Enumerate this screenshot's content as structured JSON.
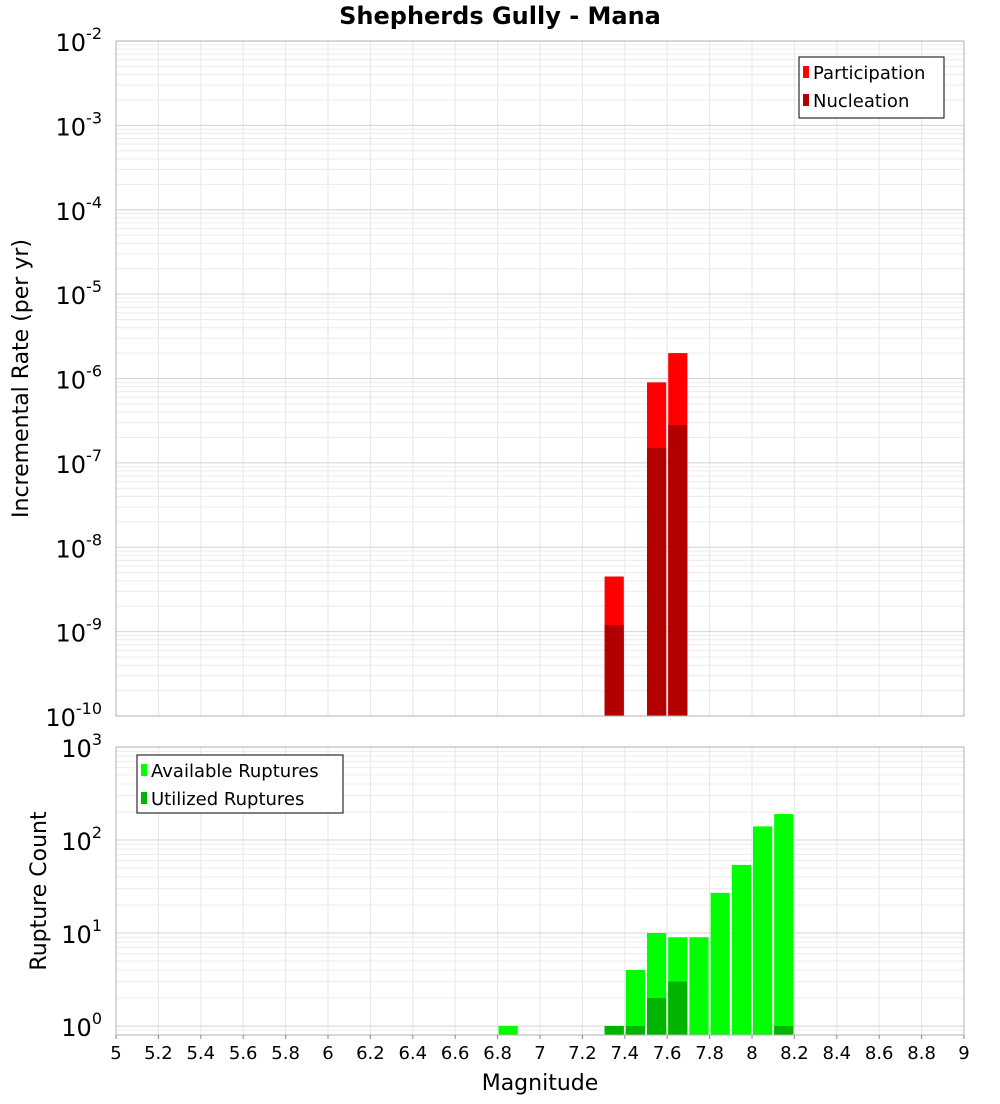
{
  "chart_data": [
    {
      "type": "bar",
      "title": "Shepherds Gully - Mana",
      "xlabel": "Magnitude",
      "ylabel": "Incremental Rate (per yr)",
      "yscale": "log",
      "xlim": [
        5,
        9
      ],
      "ylim": [
        1e-10,
        0.01
      ],
      "ytick_labels": [
        {
          "base": "10",
          "exp": "-10",
          "value": 1e-10
        },
        {
          "base": "10",
          "exp": "-9",
          "value": 1e-09
        },
        {
          "base": "10",
          "exp": "-8",
          "value": 1e-08
        },
        {
          "base": "10",
          "exp": "-7",
          "value": 1e-07
        },
        {
          "base": "10",
          "exp": "-6",
          "value": 1e-06
        },
        {
          "base": "10",
          "exp": "-5",
          "value": 1e-05
        },
        {
          "base": "10",
          "exp": "-4",
          "value": 0.0001
        },
        {
          "base": "10",
          "exp": "-3",
          "value": 0.001
        },
        {
          "base": "10",
          "exp": "-2",
          "value": 0.01
        }
      ],
      "legend": {
        "position": "top-right"
      },
      "series": [
        {
          "name": "Participation",
          "color": "#ff0000",
          "points": [
            {
              "x": 7.35,
              "y": 4.5e-09
            },
            {
              "x": 7.55,
              "y": 9e-07
            },
            {
              "x": 7.65,
              "y": 2e-06
            }
          ]
        },
        {
          "name": "Nucleation",
          "color": "#b20000",
          "points": [
            {
              "x": 7.35,
              "y": 1.2e-09
            },
            {
              "x": 7.55,
              "y": 1.5e-07
            },
            {
              "x": 7.65,
              "y": 2.8e-07
            }
          ]
        }
      ]
    },
    {
      "type": "bar",
      "title": "",
      "xlabel": "Magnitude",
      "ylabel": "Rupture Count",
      "yscale": "log",
      "xlim": [
        5,
        9
      ],
      "ylim": [
        0.8,
        1000
      ],
      "ytick_labels": [
        {
          "base": "10",
          "exp": "0",
          "value": 1
        },
        {
          "base": "10",
          "exp": "1",
          "value": 10
        },
        {
          "base": "10",
          "exp": "2",
          "value": 100
        },
        {
          "base": "10",
          "exp": "3",
          "value": 1000
        }
      ],
      "xtick_labels": [
        "5",
        "5.2",
        "5.4",
        "5.6",
        "5.8",
        "6",
        "6.2",
        "6.4",
        "6.6",
        "6.8",
        "7",
        "7.2",
        "7.4",
        "7.6",
        "7.8",
        "8",
        "8.2",
        "8.4",
        "8.6",
        "8.8",
        "9"
      ],
      "xticks": [
        5,
        5.2,
        5.4,
        5.6,
        5.8,
        6,
        6.2,
        6.4,
        6.6,
        6.8,
        7,
        7.2,
        7.4,
        7.6,
        7.8,
        8,
        8.2,
        8.4,
        8.6,
        8.8,
        9
      ],
      "legend": {
        "position": "top-left"
      },
      "series": [
        {
          "name": "Available Ruptures",
          "color": "#00ff00",
          "points": [
            {
              "x": 6.85,
              "y": 1
            },
            {
              "x": 7.35,
              "y": 1
            },
            {
              "x": 7.45,
              "y": 4
            },
            {
              "x": 7.55,
              "y": 10
            },
            {
              "x": 7.65,
              "y": 9
            },
            {
              "x": 7.75,
              "y": 9
            },
            {
              "x": 7.85,
              "y": 27
            },
            {
              "x": 7.95,
              "y": 54
            },
            {
              "x": 8.05,
              "y": 140
            },
            {
              "x": 8.15,
              "y": 190
            }
          ]
        },
        {
          "name": "Utilized Ruptures",
          "color": "#00b400",
          "points": [
            {
              "x": 7.35,
              "y": 1
            },
            {
              "x": 7.45,
              "y": 1
            },
            {
              "x": 7.55,
              "y": 2
            },
            {
              "x": 7.65,
              "y": 3
            },
            {
              "x": 8.15,
              "y": 1
            }
          ]
        }
      ]
    }
  ]
}
